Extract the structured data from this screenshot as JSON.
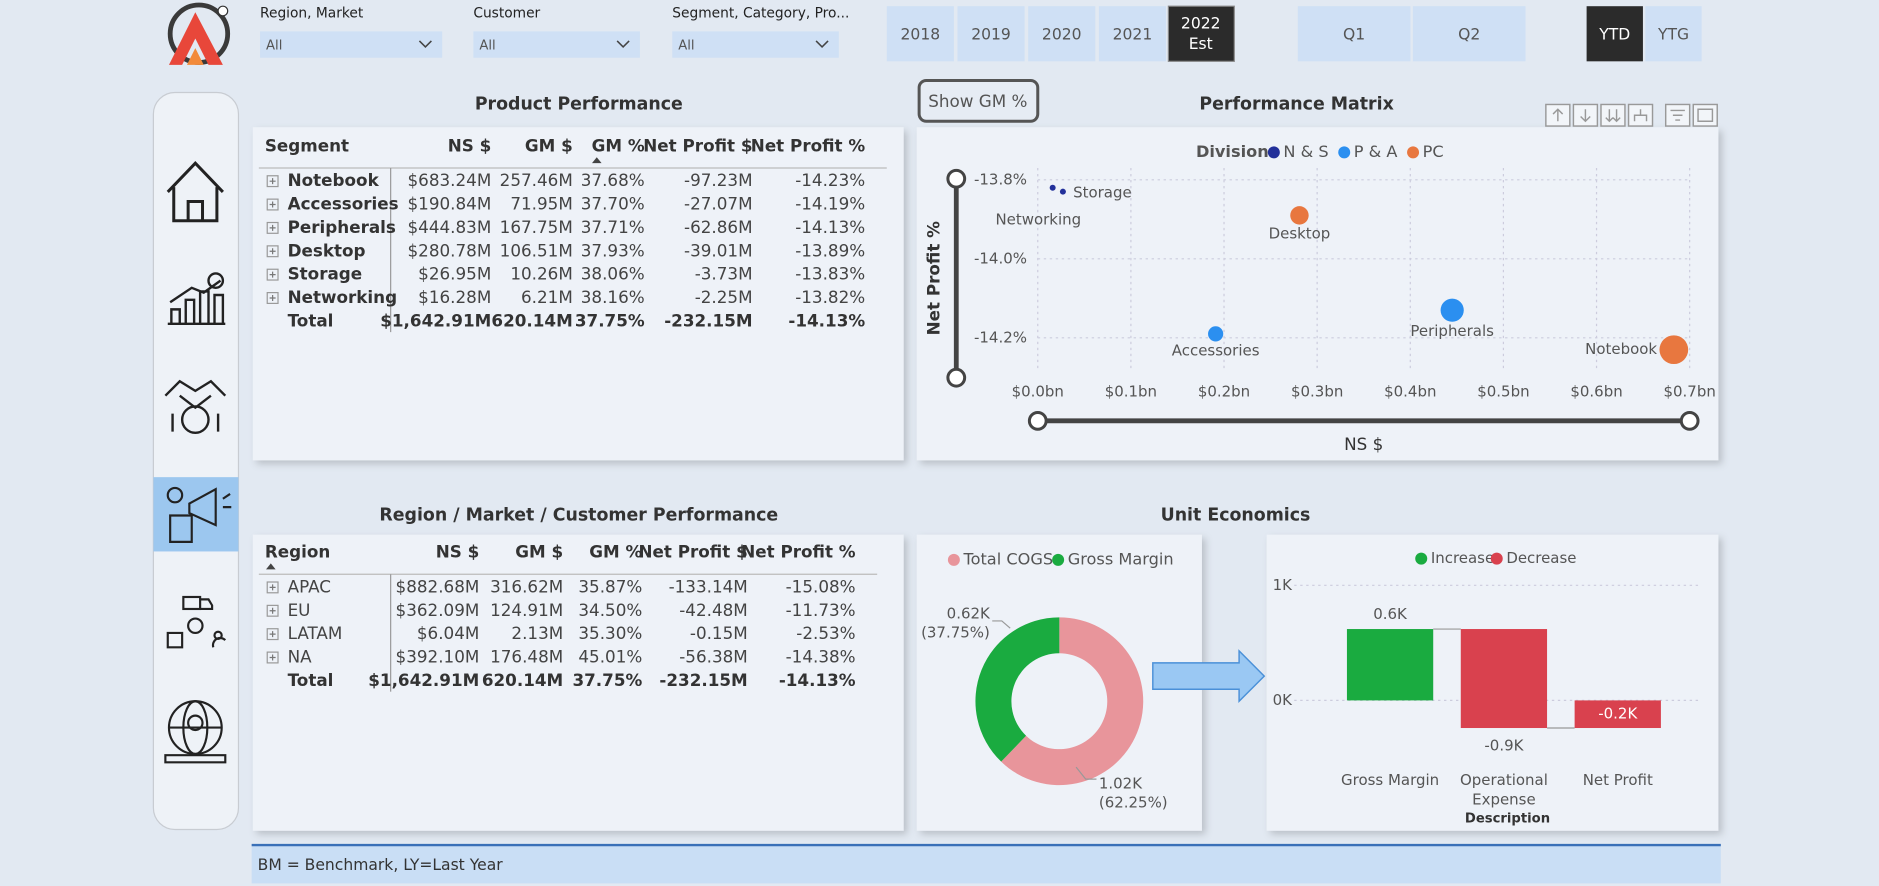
{
  "filters": [
    {
      "label": "Region, Market",
      "value": "All"
    },
    {
      "label": "Customer",
      "value": "All"
    },
    {
      "label": "Segment, Category, Pro...",
      "value": "All"
    }
  ],
  "years": [
    "2018",
    "2019",
    "2020",
    "2021"
  ],
  "current_year": [
    "2022",
    "Est"
  ],
  "quarters": [
    "Q1",
    "Q2"
  ],
  "periods": [
    "YTD",
    "YTG"
  ],
  "show_gm_button": "Show GM %",
  "product_table": {
    "title": "Product Performance",
    "columns": [
      "Segment",
      "NS $",
      "GM $",
      "GM %",
      "Net Profit $",
      "Net Profit %"
    ],
    "rows": [
      [
        "Notebook",
        "$683.24M",
        "257.46M",
        "37.68%",
        "-97.23M",
        "-14.23%"
      ],
      [
        "Accessories",
        "$190.84M",
        "71.95M",
        "37.70%",
        "-27.07M",
        "-14.19%"
      ],
      [
        "Peripherals",
        "$444.83M",
        "167.75M",
        "37.71%",
        "-62.86M",
        "-14.13%"
      ],
      [
        "Desktop",
        "$280.78M",
        "106.51M",
        "37.93%",
        "-39.01M",
        "-13.89%"
      ],
      [
        "Storage",
        "$26.95M",
        "10.26M",
        "38.06%",
        "-3.73M",
        "-13.83%"
      ],
      [
        "Networking",
        "$16.28M",
        "6.21M",
        "38.16%",
        "-2.25M",
        "-13.82%"
      ]
    ],
    "total": [
      "Total",
      "$1,642.91M",
      "620.14M",
      "37.75%",
      "-232.15M",
      "-14.13%"
    ]
  },
  "region_table": {
    "title": "Region / Market / Customer Performance",
    "columns": [
      "Region",
      "NS $",
      "GM $",
      "GM %",
      "Net Profit $",
      "Net Profit %"
    ],
    "rows": [
      [
        "APAC",
        "$882.68M",
        "316.62M",
        "35.87%",
        "-133.14M",
        "-15.08%"
      ],
      [
        "EU",
        "$362.09M",
        "124.91M",
        "34.50%",
        "-42.48M",
        "-11.73%"
      ],
      [
        "LATAM",
        "$6.04M",
        "2.13M",
        "35.30%",
        "-0.15M",
        "-2.53%"
      ],
      [
        "NA",
        "$392.10M",
        "176.48M",
        "45.01%",
        "-56.38M",
        "-14.38%"
      ]
    ],
    "total": [
      "Total",
      "$1,642.91M",
      "620.14M",
      "37.75%",
      "-232.15M",
      "-14.13%"
    ]
  },
  "performance_matrix": {
    "type": "scatter",
    "title": "Performance Matrix",
    "legend_title": "Division",
    "x_label": "NS $",
    "y_label": "Net Profit %",
    "xlim": [
      0,
      0.7
    ],
    "xticks": [
      {
        "value": 0,
        "label": "$0.0bn"
      },
      {
        "value": 0.1,
        "label": "$0.1bn"
      },
      {
        "value": 0.2,
        "label": "$0.2bn"
      },
      {
        "value": 0.3,
        "label": "$0.3bn"
      },
      {
        "value": 0.4,
        "label": "$0.4bn"
      },
      {
        "value": 0.5,
        "label": "$0.5bn"
      },
      {
        "value": 0.6,
        "label": "$0.6bn"
      },
      {
        "value": 0.7,
        "label": "$0.7bn"
      }
    ],
    "ylim": [
      -14.31,
      -13.77
    ],
    "yticks": [
      {
        "value": -13.8,
        "label": "-13.8%"
      },
      {
        "value": -14.0,
        "label": "-14.0%"
      },
      {
        "value": -14.2,
        "label": "-14.2%"
      }
    ],
    "grid": true,
    "series": [
      {
        "name": "N & S",
        "color": "#22309a",
        "labels": [
          "Storage",
          "Networking"
        ],
        "x": [
          0.027,
          0.016
        ],
        "values": [
          -13.83,
          -13.82
        ]
      },
      {
        "name": "P & A",
        "color": "#2b8ff0",
        "labels": [
          "Accessories",
          "Peripherals"
        ],
        "x": [
          0.191,
          0.445
        ],
        "values": [
          -14.19,
          -14.13
        ]
      },
      {
        "name": "PC",
        "color": "#e8773f",
        "labels": [
          "Desktop",
          "Notebook"
        ],
        "x": [
          0.281,
          0.683
        ],
        "values": [
          -13.89,
          -14.23
        ]
      }
    ]
  },
  "unit_economics": {
    "title": "Unit Economics",
    "donut": {
      "type": "pie",
      "categories": [
        "Total COGS",
        "Gross Margin"
      ],
      "colors": [
        "#e8959b",
        "#1aab40"
      ],
      "values": [
        1.02,
        0.62
      ],
      "value_labels": [
        "1.02K",
        "0.62K"
      ],
      "percent_labels": [
        "(62.25%)",
        "(37.75%)"
      ]
    },
    "waterfall": {
      "type": "waterfall",
      "legend": [
        {
          "name": "Increase",
          "color": "#1aab40"
        },
        {
          "name": "Decrease",
          "color": "#d9414e"
        }
      ],
      "categories": [
        "Gross Margin",
        "Operational Expense",
        "Net Profit"
      ],
      "values": [
        0.62,
        -0.86,
        -0.24
      ],
      "value_labels": [
        "0.6K",
        "-0.9K",
        "-0.2K"
      ],
      "x_label": "Description",
      "ylim": [
        -0.58,
        1.19
      ],
      "yticks": [
        {
          "value": 0,
          "label": "0K"
        },
        {
          "value": 1,
          "label": "1K"
        }
      ],
      "grid": true
    }
  },
  "footer": "BM = Benchmark, LY=Last Year"
}
